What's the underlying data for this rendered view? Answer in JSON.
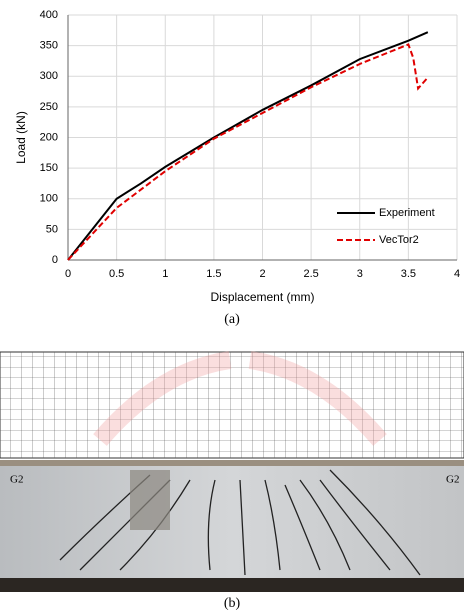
{
  "chart_data": {
    "type": "line",
    "x_label": "Displacement (mm)",
    "y_label": "Load (kN)",
    "xlim": [
      0,
      4
    ],
    "xticks": [
      0,
      0.5,
      1,
      1.5,
      2,
      2.5,
      3,
      3.5,
      4
    ],
    "ylim": [
      0,
      400
    ],
    "yticks": [
      0,
      50,
      100,
      150,
      200,
      250,
      300,
      350,
      400
    ],
    "grid": true,
    "legend": "lower right",
    "series": [
      {
        "name": "Experiment",
        "color": "#000000",
        "dash": false,
        "x": [
          0,
          0.25,
          0.5,
          0.75,
          1,
          1.5,
          2,
          2.5,
          3,
          3.5,
          3.7
        ],
        "values": [
          0,
          50,
          100,
          125,
          152,
          200,
          245,
          285,
          328,
          358,
          372
        ]
      },
      {
        "name": "VecTor2",
        "color": "#e00000",
        "dash": true,
        "x": [
          0,
          0.5,
          1,
          1.5,
          2,
          2.5,
          3,
          3.5,
          3.55,
          3.6,
          3.7
        ],
        "values": [
          0,
          85,
          145,
          198,
          240,
          282,
          320,
          352,
          330,
          280,
          298
        ]
      }
    ]
  },
  "caption_a": "(a)",
  "figure_b": {
    "caption": "(b)",
    "labels": [
      "G2",
      "G2"
    ]
  }
}
